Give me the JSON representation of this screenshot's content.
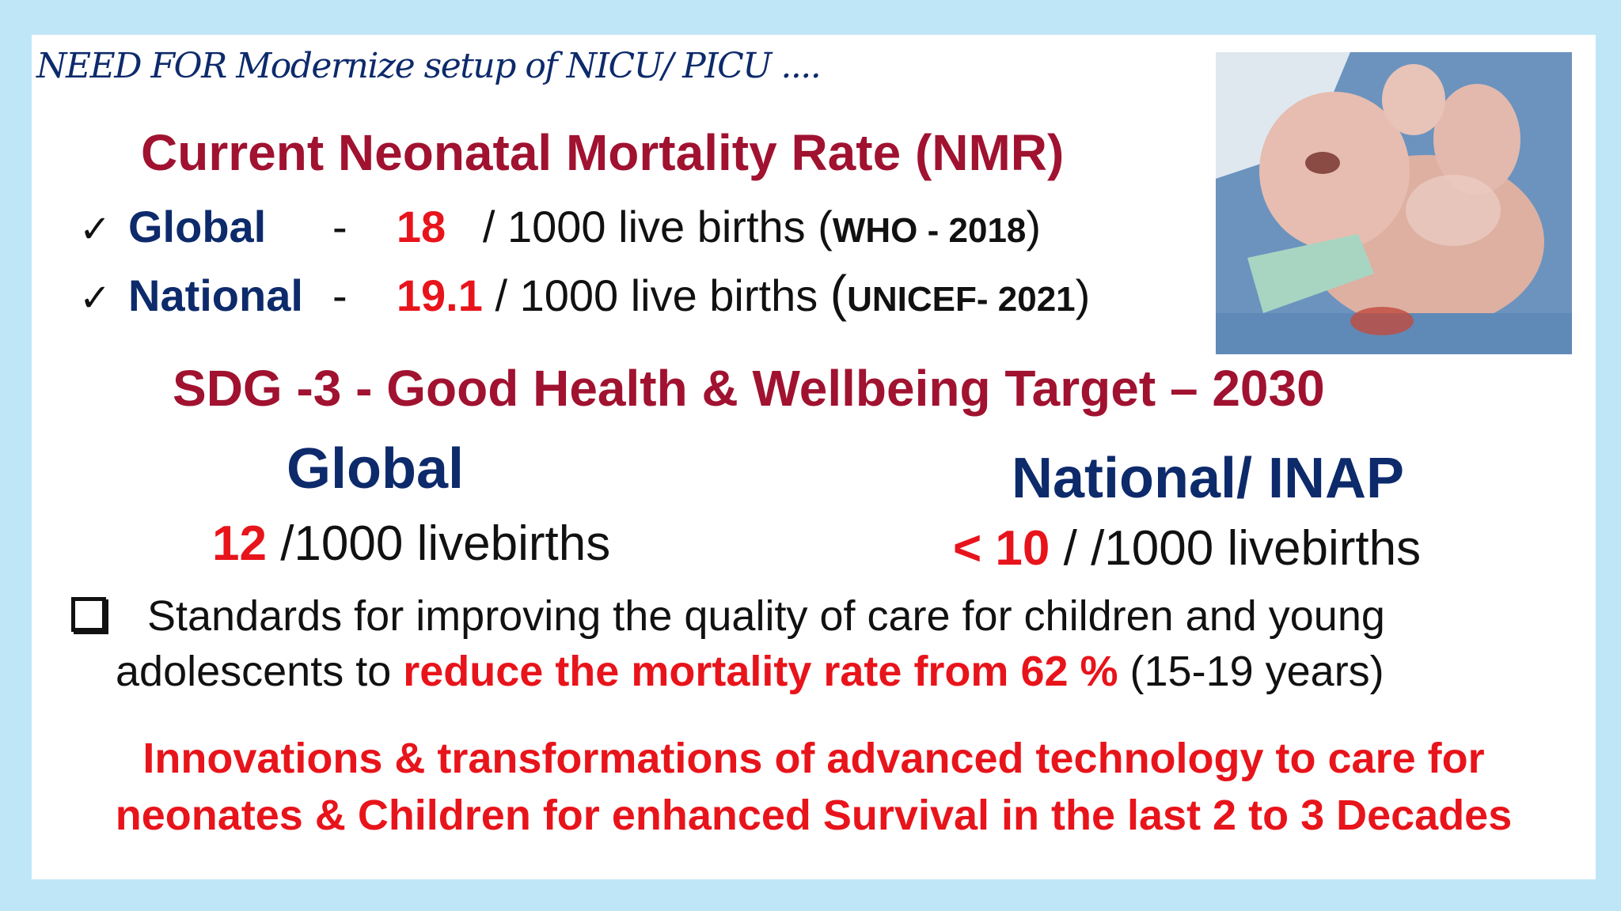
{
  "header": "NEED FOR  Modernize setup of NICU/ PICU ....",
  "nmr": {
    "title": "Current Neonatal Mortality Rate (NMR)",
    "check_icon": "check-icon",
    "rows": [
      {
        "label": "Global",
        "dash": "-",
        "value": "18",
        "unit": " / 1000 live births ",
        "open": "(",
        "source": "WHO - 2018",
        "close": ")"
      },
      {
        "label": "National",
        "dash": "-",
        "value": "19.1",
        "unit": " / 1000 live births ",
        "open": "(",
        "source": "UNICEF- 2021",
        "close": ")"
      }
    ]
  },
  "sdg": {
    "title": "SDG -3  - Good Health & Wellbeing Target – 2030",
    "global": {
      "heading": "Global",
      "value": "12",
      "unit": " /1000 livebirths"
    },
    "national": {
      "heading": "National/ INAP",
      "value": "< 10",
      "unit": " / /1000 livebirths"
    }
  },
  "standards": {
    "icon": "checkbox-icon",
    "line1": "Standards for improving the quality of care for children and young",
    "line2_a": "adolescents  to ",
    "line2_highlight": "reduce the mortality rate from 62 %",
    "line2_b": " (15-19 years)"
  },
  "innovations": {
    "line1": "Innovations  & transformations of advanced technology  to care for",
    "line2": "neonates & Children for  enhanced Survival in the last 2 to 3 Decades"
  },
  "colors": {
    "navy": "#0d2a6b",
    "maroon": "#a01230",
    "red": "#e8141b",
    "frame": "#bfe6f7"
  }
}
